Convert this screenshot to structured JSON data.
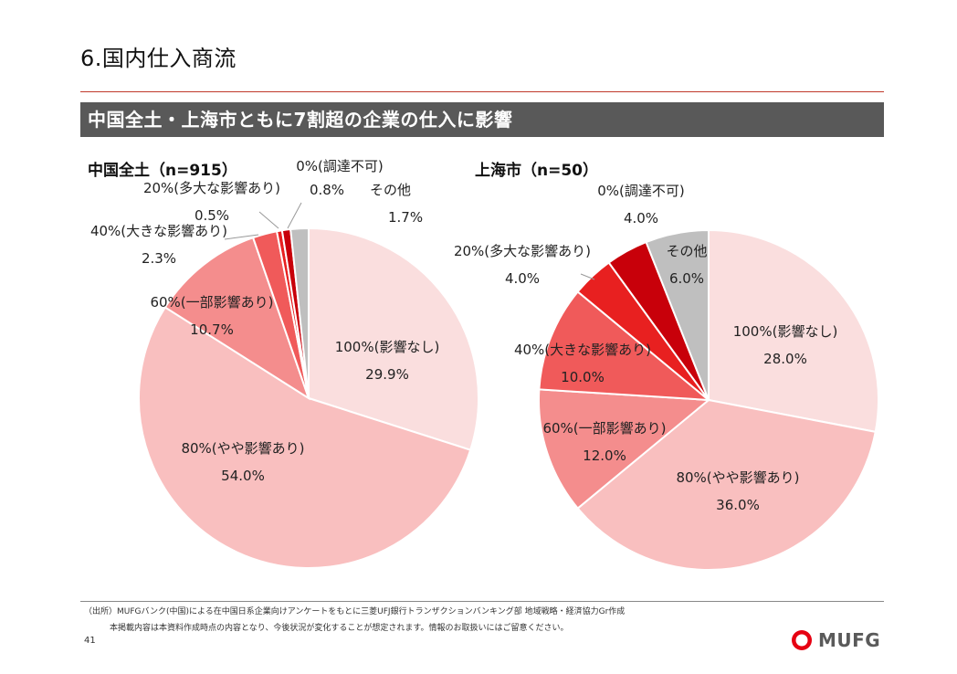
{
  "page": {
    "title": "6.国内仕入商流",
    "banner": "中国全土・上海市ともに7割超の企業の仕入に影響",
    "source": "（出所）MUFGバンク(中国)による在中国日系企業向けアンケートをもとに三菱UFJ銀行トランザクションバンキング部 地域戦略・経済協力Gr作成",
    "note": "本掲載内容は本資料作成時点の内容となり、今後状況が変化することが想定されます。情報のお取扱いにはご留意ください。",
    "page_number": "41",
    "logo_text": "MUFG",
    "logo_color": "#e60012"
  },
  "chart_data": [
    {
      "type": "pie",
      "title": "中国全土（n=915）",
      "slices": [
        {
          "label": "100%(影響なし)",
          "value": 29.9,
          "value_label": "29.9%",
          "color": "#fadede"
        },
        {
          "label": "80%(やや影響あり)",
          "value": 54.0,
          "value_label": "54.0%",
          "color": "#f9bfbf"
        },
        {
          "label": "60%(一部影響あり)",
          "value": 10.7,
          "value_label": "10.7%",
          "color": "#f48d8d"
        },
        {
          "label": "40%(大きな影響あり)",
          "value": 2.3,
          "value_label": "2.3%",
          "color": "#f05a5a"
        },
        {
          "label": "20%(多大な影響あり)",
          "value": 0.5,
          "value_label": "0.5%",
          "color": "#e82020"
        },
        {
          "label": "0%(調達不可)",
          "value": 0.8,
          "value_label": "0.8%",
          "color": "#c8000a"
        },
        {
          "label": "その他",
          "value": 1.7,
          "value_label": "1.7%",
          "color": "#bfbfbf"
        }
      ]
    },
    {
      "type": "pie",
      "title": "上海市（n=50）",
      "slices": [
        {
          "label": "100%(影響なし)",
          "value": 28.0,
          "value_label": "28.0%",
          "color": "#fadede"
        },
        {
          "label": "80%(やや影響あり)",
          "value": 36.0,
          "value_label": "36.0%",
          "color": "#f9bfbf"
        },
        {
          "label": "60%(一部影響あり)",
          "value": 12.0,
          "value_label": "12.0%",
          "color": "#f48d8d"
        },
        {
          "label": "40%(大きな影響あり)",
          "value": 10.0,
          "value_label": "10.0%",
          "color": "#f05a5a"
        },
        {
          "label": "20%(多大な影響あり)",
          "value": 4.0,
          "value_label": "4.0%",
          "color": "#e82020"
        },
        {
          "label": "0%(調達不可)",
          "value": 4.0,
          "value_label": "4.0%",
          "color": "#c8000a"
        },
        {
          "label": "その他",
          "value": 6.0,
          "value_label": "6.0%",
          "color": "#bfbfbf"
        }
      ]
    }
  ]
}
